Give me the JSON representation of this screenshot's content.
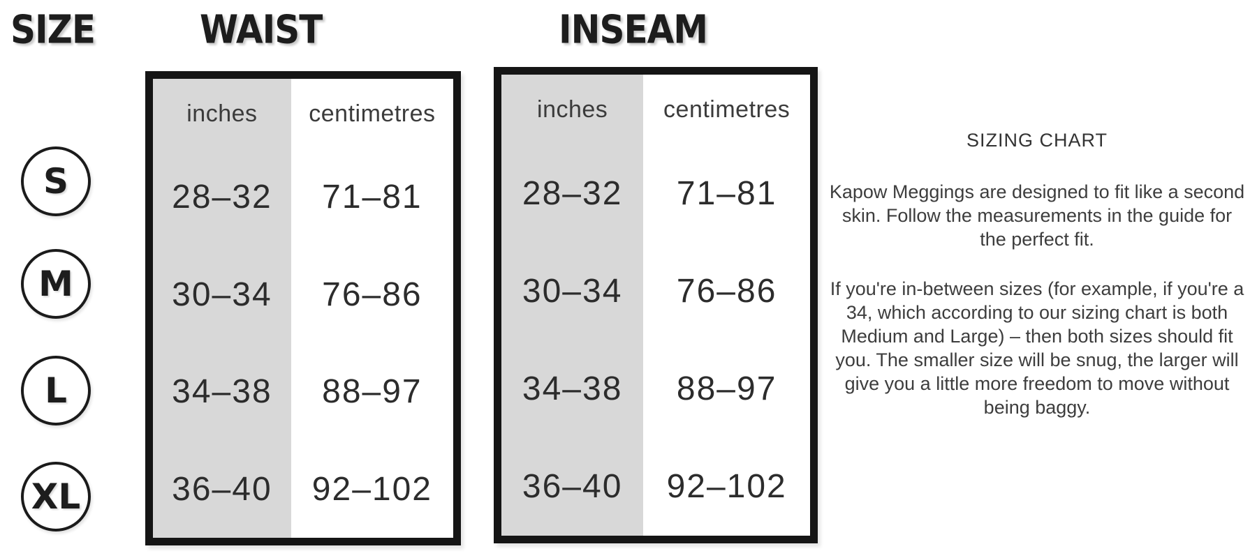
{
  "size_column": {
    "title": "SIZE",
    "sizes": [
      "S",
      "M",
      "L",
      "XL"
    ]
  },
  "tables": [
    {
      "name": "WAIST",
      "columns": [
        "inches",
        "centimetres"
      ],
      "rows": [
        {
          "size": "S",
          "inches": "28–32",
          "centimetres": "71–81"
        },
        {
          "size": "M",
          "inches": "30–34",
          "centimetres": "76–86"
        },
        {
          "size": "L",
          "inches": "34–38",
          "centimetres": "88–97"
        },
        {
          "size": "XL",
          "inches": "36–40",
          "centimetres": "92–102"
        }
      ]
    },
    {
      "name": "INSEAM",
      "columns": [
        "inches",
        "centimetres"
      ],
      "rows": [
        {
          "size": "S",
          "inches": "28–32",
          "centimetres": "71–81"
        },
        {
          "size": "M",
          "inches": "30–34",
          "centimetres": "76–86"
        },
        {
          "size": "L",
          "inches": "34–38",
          "centimetres": "88–97"
        },
        {
          "size": "XL",
          "inches": "36–40",
          "centimetres": "92–102"
        }
      ]
    }
  ],
  "info_panel": {
    "heading": "SIZING CHART",
    "paragraphs": [
      "Kapow Meggings are designed to fit like a second skin. Follow the measurements in the guide for the perfect fit.",
      "If you're in-between sizes (for example, if you're a 34, which according to our sizing chart is both Medium and Large) – then both sizes should fit you. The smaller size will be snug, the larger will give you a little more freedom to move without being baggy."
    ]
  },
  "colors": {
    "background": "#ffffff",
    "column_highlight": "#d8d8d8",
    "table_border": "#151515",
    "heading_text": "#1d1d1d",
    "value_text": "#2c2c2c",
    "body_text": "#3d3d3d"
  }
}
